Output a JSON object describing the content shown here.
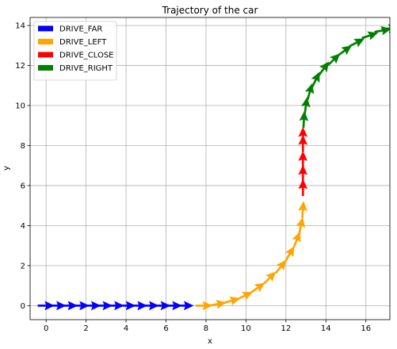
{
  "chart_data": {
    "type": "quiver",
    "title": "Trajectory of the car",
    "xlabel": "x",
    "ylabel": "y",
    "xlim": [
      -0.8,
      17.2
    ],
    "ylim": [
      -0.7,
      14.4
    ],
    "xticks": [
      0,
      2,
      4,
      6,
      8,
      10,
      12,
      14,
      16
    ],
    "yticks": [
      0,
      2,
      4,
      6,
      8,
      10,
      12,
      14
    ],
    "grid": true,
    "legend_position": "top-left",
    "series": [
      {
        "name": "DRIVE_FAR",
        "color": "#0000ff",
        "points": [
          {
            "x": 0.0,
            "y": 0.0,
            "angle": 0
          },
          {
            "x": 0.58,
            "y": 0.0,
            "angle": 0
          },
          {
            "x": 1.16,
            "y": 0.0,
            "angle": 0
          },
          {
            "x": 1.74,
            "y": 0.0,
            "angle": 0
          },
          {
            "x": 2.32,
            "y": 0.0,
            "angle": 0
          },
          {
            "x": 2.9,
            "y": 0.0,
            "angle": 0
          },
          {
            "x": 3.48,
            "y": 0.0,
            "angle": 0
          },
          {
            "x": 4.06,
            "y": 0.0,
            "angle": 0
          },
          {
            "x": 4.64,
            "y": 0.0,
            "angle": 0
          },
          {
            "x": 5.22,
            "y": 0.0,
            "angle": 0
          },
          {
            "x": 5.8,
            "y": 0.0,
            "angle": 0
          },
          {
            "x": 6.38,
            "y": 0.0,
            "angle": 0
          },
          {
            "x": 6.96,
            "y": 0.0,
            "angle": 0
          }
        ]
      },
      {
        "name": "DRIVE_LEFT",
        "color": "#ffa500",
        "points": [
          {
            "x": 7.9,
            "y": 0.0,
            "angle": 0
          },
          {
            "x": 8.6,
            "y": 0.08,
            "angle": 10
          },
          {
            "x": 9.3,
            "y": 0.25,
            "angle": 16
          },
          {
            "x": 9.95,
            "y": 0.5,
            "angle": 25
          },
          {
            "x": 10.6,
            "y": 0.9,
            "angle": 35
          },
          {
            "x": 11.2,
            "y": 1.4,
            "angle": 45
          },
          {
            "x": 11.75,
            "y": 1.95,
            "angle": 52
          },
          {
            "x": 12.2,
            "y": 2.6,
            "angle": 60
          },
          {
            "x": 12.55,
            "y": 3.3,
            "angle": 68
          },
          {
            "x": 12.75,
            "y": 4.0,
            "angle": 78
          },
          {
            "x": 12.85,
            "y": 4.8,
            "angle": 86
          }
        ]
      },
      {
        "name": "DRIVE_CLOSE",
        "color": "#ff0000",
        "points": [
          {
            "x": 12.85,
            "y": 5.9,
            "angle": 90
          },
          {
            "x": 12.85,
            "y": 6.6,
            "angle": 90
          },
          {
            "x": 12.85,
            "y": 7.3,
            "angle": 90
          },
          {
            "x": 12.85,
            "y": 8.1,
            "angle": 90
          },
          {
            "x": 12.85,
            "y": 8.5,
            "angle": 90
          }
        ]
      },
      {
        "name": "DRIVE_RIGHT",
        "color": "#008000",
        "points": [
          {
            "x": 12.9,
            "y": 9.3,
            "angle": 87
          },
          {
            "x": 13.0,
            "y": 10.0,
            "angle": 82
          },
          {
            "x": 13.2,
            "y": 10.7,
            "angle": 74
          },
          {
            "x": 13.5,
            "y": 11.3,
            "angle": 64
          },
          {
            "x": 13.9,
            "y": 11.85,
            "angle": 54
          },
          {
            "x": 14.4,
            "y": 12.3,
            "angle": 44
          },
          {
            "x": 14.95,
            "y": 12.75,
            "angle": 36
          },
          {
            "x": 15.55,
            "y": 13.15,
            "angle": 27
          },
          {
            "x": 16.2,
            "y": 13.5,
            "angle": 18
          },
          {
            "x": 16.85,
            "y": 13.75,
            "angle": 10
          },
          {
            "x": 17.2,
            "y": 13.85,
            "angle": 5
          }
        ]
      }
    ]
  }
}
